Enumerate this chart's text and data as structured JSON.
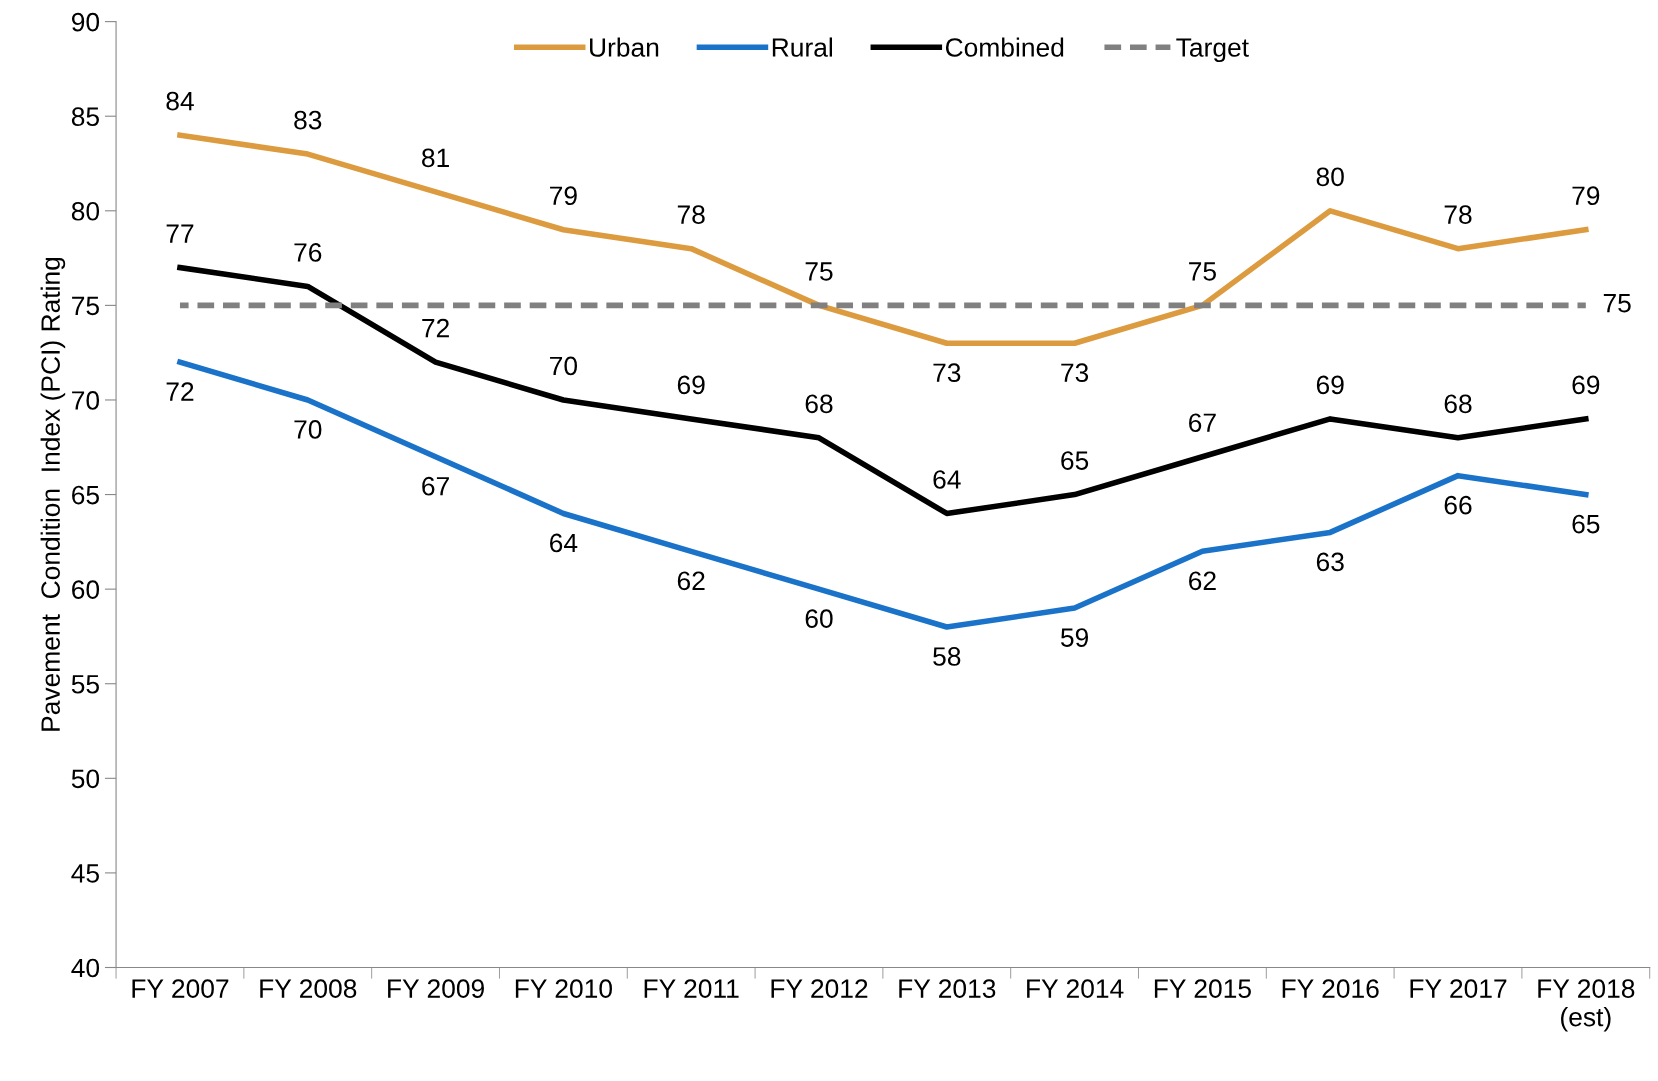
{
  "chart_data": {
    "type": "line",
    "ylabel": "Pavement  Condition  Index (PCI) Rating",
    "categories": [
      "FY 2007",
      "FY 2008",
      "FY 2009",
      "FY 2010",
      "FY 2011",
      "FY 2012",
      "FY 2013",
      "FY 2014",
      "FY 2015",
      "FY 2016",
      "FY 2017",
      "FY 2018\n(est)"
    ],
    "series": [
      {
        "name": "Urban",
        "color": "#dd9b40",
        "values": [
          84,
          83,
          81,
          79,
          78,
          75,
          73,
          73,
          75,
          80,
          78,
          79
        ],
        "value_labels": [
          "84",
          "83",
          "81",
          "79",
          "78",
          "75",
          "73",
          "73",
          "75",
          "80",
          "78",
          "79"
        ]
      },
      {
        "name": "Rural",
        "color": "#1a73c8",
        "values": [
          72,
          70,
          67,
          64,
          62,
          60,
          58,
          59,
          62,
          63,
          66,
          65
        ],
        "value_labels": [
          "72",
          "70",
          "67",
          "64",
          "62",
          "60",
          "58",
          "59",
          "62",
          "63",
          "66",
          "65"
        ]
      },
      {
        "name": "Combined",
        "color": "#000000",
        "values": [
          77,
          76,
          72,
          70,
          69,
          68,
          64,
          65,
          67,
          69,
          68,
          69
        ],
        "value_labels": [
          "77",
          "76",
          "72",
          "70",
          "69",
          "68",
          "64",
          "65",
          "67",
          "69",
          "68",
          "69"
        ]
      },
      {
        "name": "Target",
        "color": "#808080",
        "line_style": "dashed",
        "values": [
          75,
          75,
          75,
          75,
          75,
          75,
          75,
          75,
          75,
          75,
          75,
          75
        ],
        "value_labels": [
          null,
          null,
          null,
          null,
          null,
          null,
          null,
          null,
          null,
          null,
          null,
          "75"
        ]
      }
    ],
    "ylim": [
      40,
      90
    ],
    "yticks": [
      40,
      45,
      50,
      55,
      60,
      65,
      70,
      75,
      80,
      85,
      90
    ],
    "grid": false,
    "legend": "top",
    "marker": "none"
  }
}
